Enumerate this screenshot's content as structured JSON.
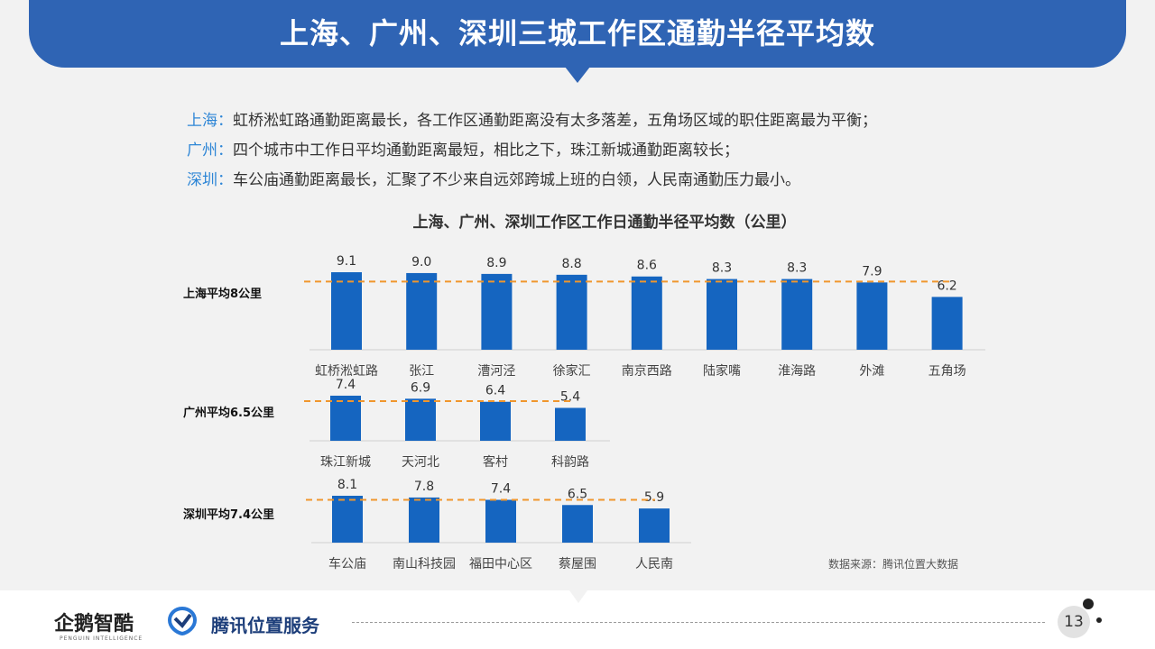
{
  "header": {
    "title": "上海、广州、深圳三城工作区通勤半径平均数"
  },
  "summary": [
    {
      "city": "上海：",
      "text": "虹桥淞虹路通勤距离最长，各工作区通勤距离没有太多落差，五角场区域的职住距离最为平衡；"
    },
    {
      "city": "广州：",
      "text": "四个城市中工作日平均通勤距离最短，相比之下，珠江新城通勤距离较长；"
    },
    {
      "city": "深圳：",
      "text": "车公庙通勤距离最长，汇聚了不少来自远郊跨城上班的白领，人民南通勤压力最小。"
    }
  ],
  "colors": {
    "bar": "#1565c0",
    "avg_line": "#f0962d",
    "city_highlight": "#2e86d6",
    "banner": "#2f64b4"
  },
  "chart_data": {
    "type": "bar",
    "title": "上海、广州、深圳工作区工作日通勤半径平均数（公里）",
    "source": "数据来源：腾讯位置大数据",
    "groups": [
      {
        "label": "上海平均8公里",
        "average": 8,
        "categories": [
          "虹桥淞虹路",
          "张江",
          "漕河泾",
          "徐家汇",
          "南京西路",
          "陆家嘴",
          "淮海路",
          "外滩",
          "五角场"
        ],
        "values": [
          9.1,
          9.0,
          8.9,
          8.8,
          8.6,
          8.3,
          8.3,
          7.9,
          6.2
        ],
        "value_labels": [
          "9.1",
          "9.0",
          "8.9",
          "8.8",
          "8.6",
          "8.3",
          "8.3",
          "7.9",
          "6.2"
        ]
      },
      {
        "label": "广州平均6.5公里",
        "average": 6.5,
        "categories": [
          "珠江新城",
          "天河北",
          "客村",
          "科韵路"
        ],
        "values": [
          7.4,
          6.9,
          6.4,
          5.4
        ],
        "value_labels": [
          "7.4",
          "6.9",
          "6.4",
          "5.4"
        ]
      },
      {
        "label": "深圳平均7.4公里",
        "average": 7.4,
        "categories": [
          "车公庙",
          "南山科技园",
          "福田中心区",
          "蔡屋围",
          "人民南"
        ],
        "values": [
          8.1,
          7.8,
          7.4,
          6.5,
          5.9
        ],
        "value_labels": [
          "8.1",
          "7.8",
          "7.4",
          "6.5",
          "5.9"
        ]
      }
    ]
  },
  "footer": {
    "brand1": "企鹅智酷",
    "brand1_sub": "PENGUIN INTELLIGENCE",
    "brand2": "腾讯位置服务",
    "page_number": "13"
  }
}
